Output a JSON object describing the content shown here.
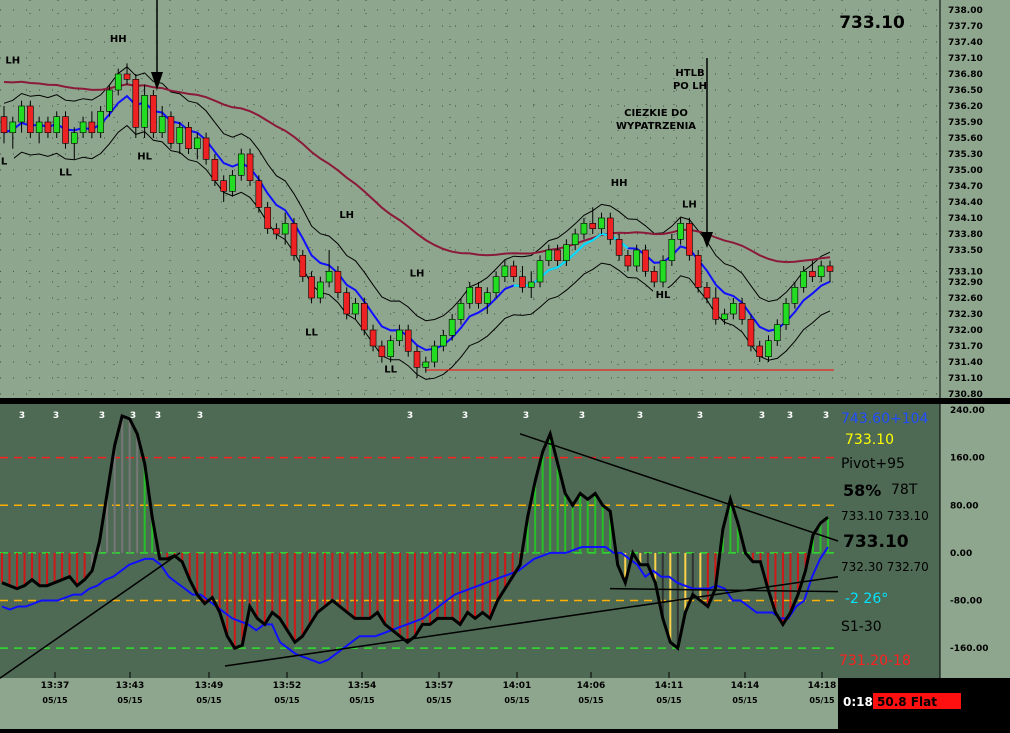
{
  "chart_data": [
    {
      "type": "candlestick",
      "title": "",
      "last_price_label": "733.10",
      "ylim": [
        730.8,
        738.0
      ],
      "y_ticks": [
        "738.00",
        "737.70",
        "737.40",
        "737.10",
        "736.80",
        "736.50",
        "736.20",
        "735.90",
        "735.60",
        "735.30",
        "735.00",
        "734.70",
        "734.40",
        "734.10",
        "733.80",
        "733.50",
        "733.10",
        "732.90",
        "732.60",
        "732.30",
        "732.00",
        "731.70",
        "731.40",
        "731.10",
        "730.80"
      ],
      "y_tick_values": [
        738.0,
        737.7,
        737.4,
        737.1,
        736.8,
        736.5,
        736.2,
        735.9,
        735.6,
        735.3,
        735.0,
        734.7,
        734.4,
        734.1,
        733.8,
        733.5,
        733.1,
        732.9,
        732.6,
        732.3,
        732.0,
        731.7,
        731.4,
        731.1,
        730.8
      ],
      "bar_count": 95,
      "candles": [
        [
          736.0,
          736.2,
          735.5,
          735.7
        ],
        [
          735.7,
          736.0,
          735.4,
          735.9
        ],
        [
          735.9,
          736.3,
          735.7,
          736.2
        ],
        [
          736.2,
          736.3,
          735.6,
          735.7
        ],
        [
          735.7,
          736.0,
          735.5,
          735.9
        ],
        [
          735.9,
          736.0,
          735.6,
          735.7
        ],
        [
          735.7,
          736.1,
          735.6,
          736.0
        ],
        [
          736.0,
          736.1,
          735.4,
          735.5
        ],
        [
          735.5,
          735.8,
          735.2,
          735.7
        ],
        [
          735.7,
          736.0,
          735.6,
          735.9
        ],
        [
          735.9,
          736.1,
          735.6,
          735.7
        ],
        [
          735.7,
          736.2,
          735.6,
          736.1
        ],
        [
          736.1,
          736.6,
          736.0,
          736.5
        ],
        [
          736.5,
          736.9,
          736.4,
          736.8
        ],
        [
          736.8,
          737.0,
          736.6,
          736.7
        ],
        [
          736.7,
          736.8,
          735.6,
          735.8
        ],
        [
          735.8,
          736.6,
          735.6,
          736.4
        ],
        [
          736.4,
          736.5,
          735.6,
          735.7
        ],
        [
          735.7,
          736.2,
          735.6,
          736.0
        ],
        [
          736.0,
          736.1,
          735.4,
          735.5
        ],
        [
          735.5,
          735.9,
          735.3,
          735.8
        ],
        [
          735.8,
          735.9,
          735.3,
          735.4
        ],
        [
          735.4,
          735.7,
          735.2,
          735.6
        ],
        [
          735.6,
          735.7,
          735.1,
          735.2
        ],
        [
          735.2,
          735.3,
          734.7,
          734.8
        ],
        [
          734.8,
          734.9,
          734.4,
          734.6
        ],
        [
          734.6,
          735.0,
          734.5,
          734.9
        ],
        [
          734.9,
          735.4,
          734.8,
          735.3
        ],
        [
          735.3,
          735.4,
          734.7,
          734.8
        ],
        [
          734.8,
          734.9,
          734.2,
          734.3
        ],
        [
          734.3,
          734.4,
          733.8,
          733.9
        ],
        [
          733.9,
          734.0,
          733.7,
          733.8
        ],
        [
          733.8,
          734.2,
          733.6,
          734.0
        ],
        [
          734.0,
          734.1,
          733.3,
          733.4
        ],
        [
          733.4,
          733.5,
          732.9,
          733.0
        ],
        [
          733.0,
          733.1,
          732.5,
          732.6
        ],
        [
          732.6,
          733.0,
          732.5,
          732.9
        ],
        [
          732.9,
          733.5,
          732.8,
          733.1
        ],
        [
          733.1,
          733.2,
          732.6,
          732.7
        ],
        [
          732.7,
          732.8,
          732.2,
          732.3
        ],
        [
          732.3,
          732.6,
          732.2,
          732.5
        ],
        [
          732.5,
          732.6,
          731.9,
          732.0
        ],
        [
          732.0,
          732.1,
          731.6,
          731.7
        ],
        [
          731.7,
          731.8,
          731.3,
          731.5
        ],
        [
          731.5,
          731.9,
          731.4,
          731.8
        ],
        [
          731.8,
          732.1,
          731.7,
          732.0
        ],
        [
          732.0,
          732.1,
          731.5,
          731.6
        ],
        [
          731.6,
          731.7,
          731.1,
          731.3
        ],
        [
          731.3,
          731.5,
          731.2,
          731.4
        ],
        [
          731.4,
          731.8,
          731.3,
          731.7
        ],
        [
          731.7,
          732.0,
          731.6,
          731.9
        ],
        [
          731.9,
          732.3,
          731.8,
          732.2
        ],
        [
          732.2,
          732.6,
          732.1,
          732.5
        ],
        [
          732.5,
          732.9,
          732.4,
          732.8
        ],
        [
          732.8,
          732.9,
          732.4,
          732.5
        ],
        [
          732.5,
          732.8,
          732.3,
          732.7
        ],
        [
          732.7,
          733.1,
          732.6,
          733.0
        ],
        [
          733.0,
          733.3,
          732.9,
          733.2
        ],
        [
          733.2,
          733.3,
          732.9,
          733.0
        ],
        [
          733.0,
          733.2,
          732.7,
          732.8
        ],
        [
          732.8,
          733.1,
          732.6,
          732.9
        ],
        [
          732.9,
          733.4,
          732.8,
          733.3
        ],
        [
          733.3,
          733.6,
          733.2,
          733.5
        ],
        [
          733.5,
          733.6,
          733.2,
          733.3
        ],
        [
          733.3,
          733.7,
          733.2,
          733.6
        ],
        [
          733.6,
          733.9,
          733.5,
          733.8
        ],
        [
          733.8,
          734.1,
          733.7,
          734.0
        ],
        [
          734.0,
          734.3,
          733.8,
          733.9
        ],
        [
          733.9,
          734.2,
          733.8,
          734.1
        ],
        [
          734.1,
          734.2,
          733.6,
          733.7
        ],
        [
          733.7,
          733.8,
          733.3,
          733.4
        ],
        [
          733.4,
          733.5,
          733.1,
          733.2
        ],
        [
          733.2,
          733.6,
          733.1,
          733.5
        ],
        [
          733.5,
          733.6,
          733.0,
          733.1
        ],
        [
          733.1,
          733.2,
          732.8,
          732.9
        ],
        [
          732.9,
          733.4,
          732.8,
          733.3
        ],
        [
          733.3,
          733.8,
          733.2,
          733.7
        ],
        [
          733.7,
          734.1,
          733.6,
          734.0
        ],
        [
          734.0,
          734.1,
          733.3,
          733.4
        ],
        [
          733.4,
          733.5,
          732.7,
          732.8
        ],
        [
          732.8,
          732.9,
          732.5,
          732.6
        ],
        [
          732.6,
          732.8,
          732.1,
          732.2
        ],
        [
          732.2,
          732.4,
          732.1,
          732.3
        ],
        [
          732.3,
          732.6,
          732.2,
          732.5
        ],
        [
          732.5,
          732.6,
          732.1,
          732.2
        ],
        [
          732.2,
          732.3,
          731.6,
          731.7
        ],
        [
          731.7,
          731.8,
          731.4,
          731.5
        ],
        [
          731.5,
          731.9,
          731.4,
          731.8
        ],
        [
          731.8,
          732.2,
          731.7,
          732.1
        ],
        [
          732.1,
          732.6,
          732.0,
          732.5
        ],
        [
          732.5,
          732.9,
          732.4,
          732.8
        ],
        [
          732.8,
          733.2,
          732.7,
          733.1
        ],
        [
          733.1,
          733.3,
          732.9,
          733.0
        ],
        [
          733.0,
          733.3,
          732.9,
          733.2
        ],
        [
          733.2,
          733.3,
          732.9,
          733.1
        ]
      ],
      "swing_labels": [
        {
          "text": "LH",
          "bar": 1,
          "price": 737.0
        },
        {
          "text": "HH",
          "bar": 13,
          "price": 737.4
        },
        {
          "text": "L",
          "bar": 0,
          "price": 735.1
        },
        {
          "text": "LL",
          "bar": 7,
          "price": 734.9
        },
        {
          "text": "HL",
          "bar": 16,
          "price": 735.2
        },
        {
          "text": "LH",
          "bar": 39,
          "price": 734.1
        },
        {
          "text": "LH",
          "bar": 47,
          "price": 733.0
        },
        {
          "text": "LL",
          "bar": 35,
          "price": 731.9
        },
        {
          "text": "LL",
          "bar": 44,
          "price": 731.2
        },
        {
          "text": "HH",
          "bar": 70,
          "price": 734.7
        },
        {
          "text": "LH",
          "bar": 78,
          "price": 734.3
        },
        {
          "text": "HL",
          "bar": 75,
          "price": 732.6
        }
      ],
      "annotations": [
        {
          "text": "HTLB PO LH",
          "lines": [
            "HTLB",
            "PO LH"
          ]
        },
        {
          "text": "CIEZKIE DO WYPATRZENIA",
          "lines": [
            "CIEZKIE DO",
            "WYPATRZENIA"
          ]
        }
      ],
      "support_line": 731.25,
      "colors": {
        "up": "#22dd22",
        "down": "#ee2222",
        "ma_slow": "#8b1a3a",
        "ma_fast": "#1010ff",
        "band": "#000000",
        "cyan": "#00e5ff",
        "support": "#ff0000",
        "bg": "#8ea68e",
        "grid": "#506050"
      }
    },
    {
      "type": "oscillator",
      "ylim": [
        -200,
        240
      ],
      "y_ticks": [
        "240.00",
        "160.00",
        "80.00",
        "0.00",
        "-80.00",
        "-160.00"
      ],
      "y_tick_values": [
        240,
        160,
        80,
        0,
        -80,
        -160
      ],
      "levels": [
        {
          "value": 160,
          "color": "#ff2020"
        },
        {
          "value": 80,
          "color": "#ffb000"
        },
        {
          "value": 0,
          "color": "#30e030"
        },
        {
          "value": -80,
          "color": "#ffb000"
        },
        {
          "value": -160,
          "color": "#30e030"
        }
      ],
      "osc": [
        -50,
        -55,
        -60,
        -55,
        -45,
        -55,
        -55,
        -50,
        -45,
        -40,
        -55,
        -45,
        -30,
        20,
        100,
        180,
        230,
        225,
        200,
        150,
        60,
        -10,
        -10,
        -5,
        -15,
        -45,
        -70,
        -85,
        -75,
        -100,
        -140,
        -160,
        -155,
        -90,
        -110,
        -120,
        -100,
        -110,
        -130,
        -150,
        -140,
        -120,
        -100,
        -90,
        -80,
        -90,
        -100,
        -110,
        -110,
        -110,
        -100,
        -120,
        -130,
        -140,
        -150,
        -140,
        -120,
        -120,
        -110,
        -110,
        -110,
        -120,
        -100,
        -110,
        -100,
        -110,
        -80,
        -60,
        -40,
        -20,
        60,
        120,
        170,
        200,
        150,
        100,
        80,
        100,
        90,
        100,
        80,
        70,
        -20,
        -50,
        0,
        -20,
        -20,
        -50,
        -110,
        -150,
        -160,
        -100,
        -70,
        -80,
        -90,
        -60,
        40,
        90,
        50,
        0,
        -15,
        -15,
        -60,
        -100,
        -120,
        -100,
        -70,
        -30,
        30,
        50,
        60
      ],
      "signal": [
        -90,
        -95,
        -90,
        -90,
        -85,
        -80,
        -80,
        -80,
        -75,
        -70,
        -70,
        -60,
        -55,
        -45,
        -40,
        -30,
        -20,
        -15,
        -10,
        -10,
        -20,
        -40,
        -50,
        -60,
        -70,
        -70,
        -80,
        -90,
        -100,
        -110,
        -115,
        -120,
        -130,
        -120,
        -120,
        -150,
        -160,
        -170,
        -175,
        -180,
        -185,
        -180,
        -170,
        -160,
        -150,
        -140,
        -140,
        -140,
        -135,
        -130,
        -125,
        -120,
        -115,
        -110,
        -100,
        -90,
        -80,
        -70,
        -65,
        -60,
        -55,
        -50,
        -45,
        -40,
        -35,
        -30,
        -20,
        -10,
        -5,
        0,
        0,
        0,
        5,
        10,
        10,
        10,
        10,
        0,
        0,
        -10,
        -20,
        -40,
        -30,
        -40,
        -40,
        -50,
        -55,
        -60,
        -60,
        -60,
        -55,
        -60,
        -80,
        -80,
        -90,
        -100,
        -100,
        -100,
        -110,
        -110,
        -90,
        -80,
        -40,
        -10,
        10
      ],
      "zero_labels": [
        "3",
        "3",
        "3",
        "3",
        "3",
        "3",
        "3",
        "3",
        "3",
        "3",
        "3",
        "3",
        "3",
        "3",
        "3"
      ],
      "trendlines": 5
    }
  ],
  "side_panel": {
    "o_top": "743.60+104",
    "o_price_yellow": "733.10",
    "o_pivot": "Pivot+95",
    "o_pct": "58%",
    "o_ticks": "78T",
    "o_pair1": "733.10 733.10",
    "o_big_price": "733.10",
    "o_pair2": "732.30 732.70",
    "o_cyan": "-2  26°",
    "o_s1": "S1-30",
    "o_red_low": "731.20-18"
  },
  "time_axis": [
    {
      "time": "13:37",
      "date": "05/15"
    },
    {
      "time": "13:43",
      "date": "05/15"
    },
    {
      "time": "13:49",
      "date": "05/15"
    },
    {
      "time": "13:52",
      "date": "05/15"
    },
    {
      "time": "13:54",
      "date": "05/15"
    },
    {
      "time": "13:57",
      "date": "05/15"
    },
    {
      "time": "14:01",
      "date": "05/15"
    },
    {
      "time": "14:06",
      "date": "05/15"
    },
    {
      "time": "14:11",
      "date": "05/15"
    },
    {
      "time": "14:14",
      "date": "05/15"
    },
    {
      "time": "14:18",
      "date": "05/15"
    }
  ],
  "status": {
    "timer": "0:18",
    "mode": "50.8 Flat"
  }
}
